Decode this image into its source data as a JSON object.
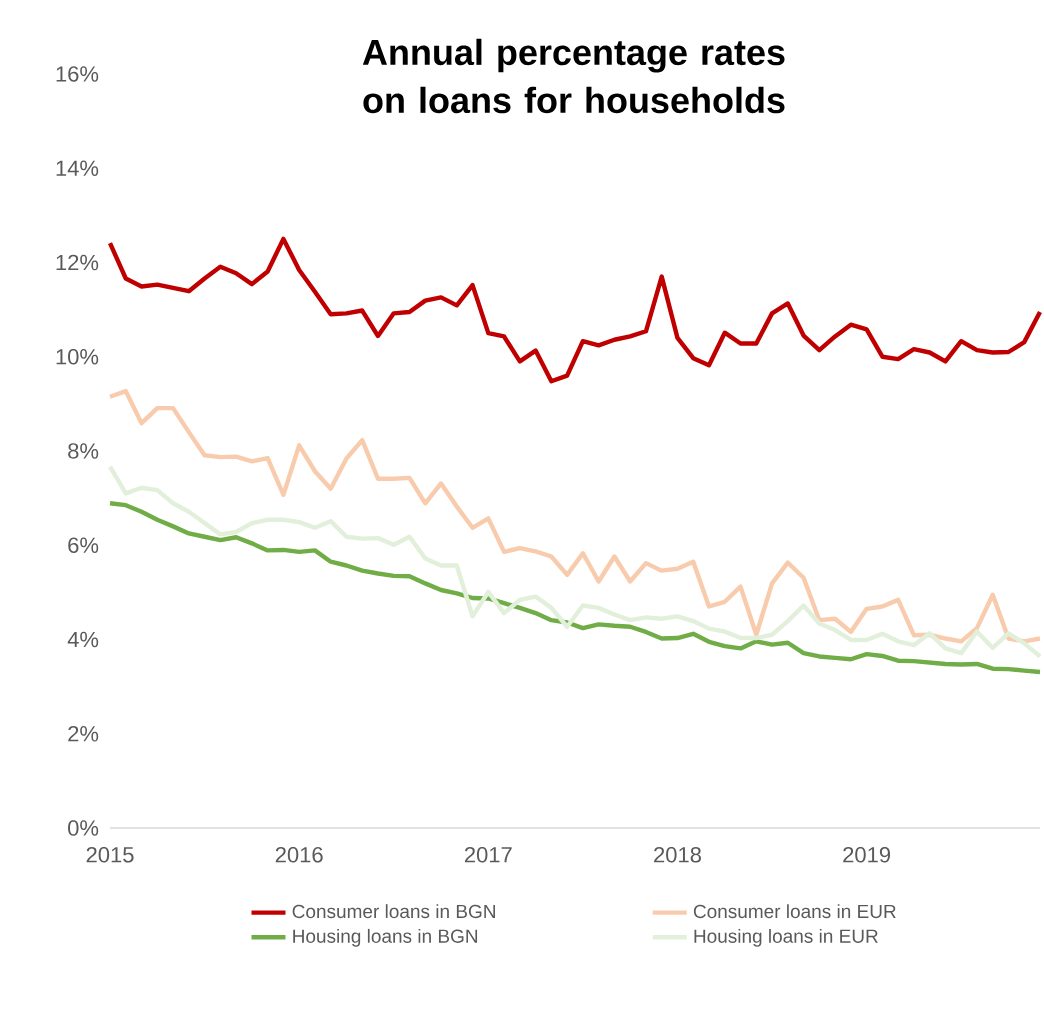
{
  "chart_data": {
    "type": "line",
    "title": "Annual percentage rates on loans for households",
    "x": [
      "2015-01",
      "2015-02",
      "2015-03",
      "2015-04",
      "2015-05",
      "2015-06",
      "2015-07",
      "2015-08",
      "2015-09",
      "2015-10",
      "2015-11",
      "2015-12",
      "2016-01",
      "2016-02",
      "2016-03",
      "2016-04",
      "2016-05",
      "2016-06",
      "2016-07",
      "2016-08",
      "2016-09",
      "2016-10",
      "2016-11",
      "2016-12",
      "2017-01",
      "2017-02",
      "2017-03",
      "2017-04",
      "2017-05",
      "2017-06",
      "2017-07",
      "2017-08",
      "2017-09",
      "2017-10",
      "2017-11",
      "2017-12",
      "2018-01",
      "2018-02",
      "2018-03",
      "2018-04",
      "2018-05",
      "2018-06",
      "2018-07",
      "2018-08",
      "2018-09",
      "2018-10",
      "2018-11",
      "2018-12",
      "2019-01",
      "2019-02",
      "2019-03",
      "2019-04",
      "2019-05",
      "2019-06",
      "2019-07",
      "2019-08",
      "2019-09",
      "2019-10",
      "2019-11",
      "2019-12"
    ],
    "series": [
      {
        "name": "Consumer loans in BGN",
        "color": "#c00000",
        "values": [
          12.41,
          11.66,
          11.49,
          11.53,
          11.46,
          11.39,
          11.66,
          11.91,
          11.77,
          11.54,
          11.81,
          12.5,
          11.84,
          11.38,
          10.9,
          10.92,
          10.98,
          10.44,
          10.92,
          10.95,
          11.19,
          11.26,
          11.09,
          11.52,
          10.5,
          10.43,
          9.9,
          10.13,
          9.48,
          9.6,
          10.33,
          10.24,
          10.36,
          10.43,
          10.54,
          11.7,
          10.4,
          9.97,
          9.82,
          10.51,
          10.28,
          10.28,
          10.92,
          11.13,
          10.45,
          10.14,
          10.43,
          10.68,
          10.58,
          10.0,
          9.95,
          10.16,
          10.09,
          9.9,
          10.33,
          10.14,
          10.09,
          10.1,
          10.31,
          10.95
        ]
      },
      {
        "name": "Consumer loans in EUR",
        "color": "#f8cbad",
        "values": [
          9.15,
          9.27,
          8.59,
          8.91,
          8.91,
          8.4,
          7.91,
          7.87,
          7.88,
          7.78,
          7.85,
          7.07,
          8.12,
          7.57,
          7.2,
          7.84,
          8.23,
          7.41,
          7.41,
          7.43,
          6.89,
          7.31,
          6.82,
          6.37,
          6.57,
          5.86,
          5.94,
          5.87,
          5.76,
          5.37,
          5.83,
          5.23,
          5.76,
          5.23,
          5.62,
          5.46,
          5.5,
          5.65,
          4.7,
          4.8,
          5.12,
          4.1,
          5.19,
          5.63,
          5.31,
          4.41,
          4.44,
          4.16,
          4.65,
          4.7,
          4.84,
          4.09,
          4.1,
          4.02,
          3.96,
          4.24,
          4.95,
          4.02,
          3.96,
          4.02
        ]
      },
      {
        "name": "Housing loans in BGN",
        "color": "#70ad47",
        "values": [
          6.89,
          6.85,
          6.71,
          6.54,
          6.4,
          6.25,
          6.18,
          6.11,
          6.17,
          6.04,
          5.89,
          5.9,
          5.86,
          5.89,
          5.65,
          5.57,
          5.46,
          5.4,
          5.35,
          5.34,
          5.19,
          5.05,
          4.98,
          4.88,
          4.87,
          4.77,
          4.67,
          4.56,
          4.41,
          4.36,
          4.24,
          4.32,
          4.29,
          4.27,
          4.16,
          4.02,
          4.03,
          4.12,
          3.95,
          3.86,
          3.81,
          3.96,
          3.89,
          3.93,
          3.71,
          3.64,
          3.61,
          3.58,
          3.69,
          3.65,
          3.55,
          3.54,
          3.51,
          3.48,
          3.47,
          3.48,
          3.38,
          3.37,
          3.34,
          3.31
        ]
      },
      {
        "name": "Housing loans in EUR",
        "color": "#e2efda",
        "values": [
          7.67,
          7.1,
          7.22,
          7.17,
          6.89,
          6.71,
          6.47,
          6.23,
          6.28,
          6.47,
          6.54,
          6.54,
          6.49,
          6.37,
          6.51,
          6.18,
          6.14,
          6.15,
          6.01,
          6.18,
          5.72,
          5.57,
          5.57,
          4.49,
          5.01,
          4.56,
          4.84,
          4.91,
          4.67,
          4.27,
          4.72,
          4.67,
          4.53,
          4.41,
          4.47,
          4.44,
          4.49,
          4.39,
          4.23,
          4.17,
          4.03,
          4.03,
          4.1,
          4.39,
          4.72,
          4.34,
          4.2,
          3.99,
          3.99,
          4.12,
          3.96,
          3.88,
          4.13,
          3.81,
          3.71,
          4.17,
          3.82,
          4.13,
          3.92,
          3.64
        ]
      }
    ],
    "xlim": [
      "2015-01",
      "2019-12"
    ],
    "xticks": [
      {
        "value": "2015-01",
        "label": "2015"
      },
      {
        "value": "2016-01",
        "label": "2016"
      },
      {
        "value": "2017-01",
        "label": "2017"
      },
      {
        "value": "2018-01",
        "label": "2018"
      },
      {
        "value": "2019-01",
        "label": "2019"
      }
    ],
    "ylim": [
      0,
      16
    ],
    "yticks": [
      {
        "value": 0,
        "label": "0%"
      },
      {
        "value": 2,
        "label": "2%"
      },
      {
        "value": 4,
        "label": "4%"
      },
      {
        "value": 6,
        "label": "6%"
      },
      {
        "value": 8,
        "label": "8%"
      },
      {
        "value": 10,
        "label": "10%"
      },
      {
        "value": 12,
        "label": "12%"
      },
      {
        "value": 14,
        "label": "14%"
      },
      {
        "value": 16,
        "label": "16%"
      }
    ],
    "grid": false,
    "legend": "bottom",
    "marker": "none",
    "line_style": "solid"
  }
}
